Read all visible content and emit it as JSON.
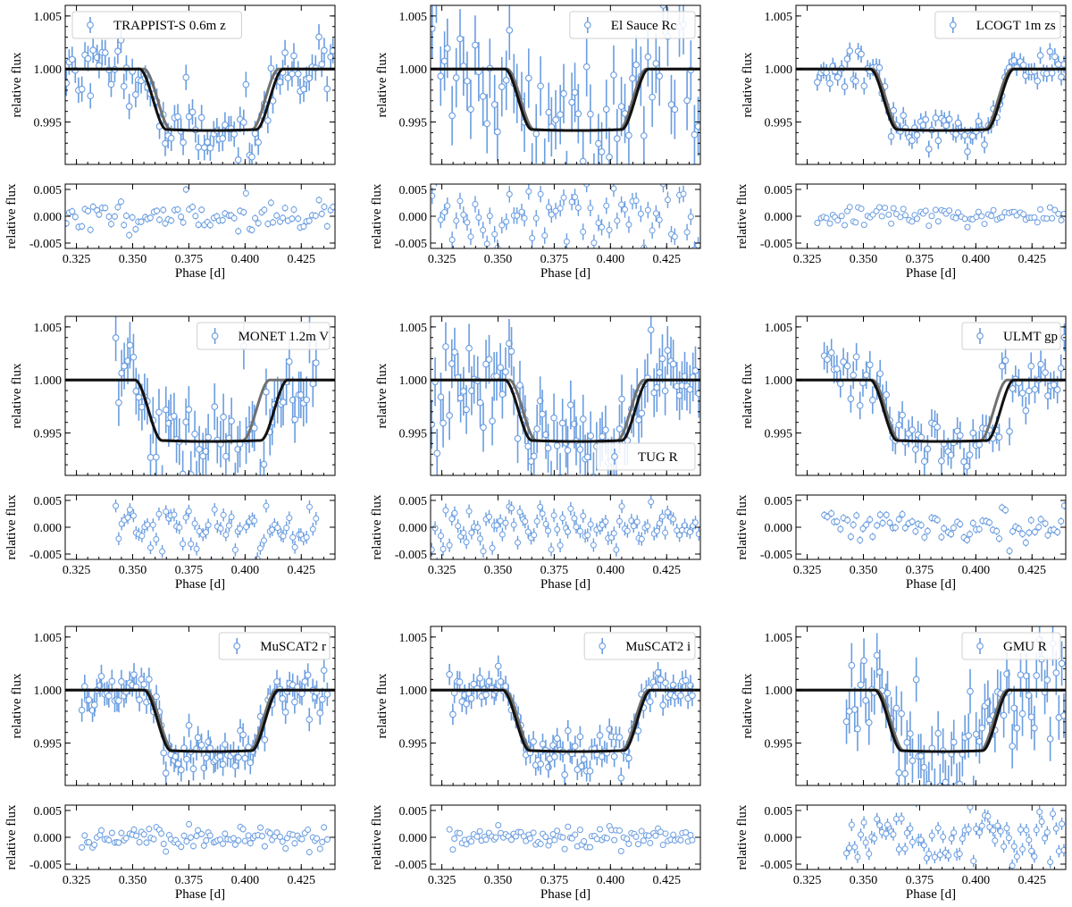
{
  "figure": {
    "description_axes": "3x3 grid of transit light curve panels with residual subplots",
    "colors": {
      "data": "#6a9de0",
      "model_primary": "#111111",
      "model_secondary": "#707070",
      "axis": "#000000"
    }
  },
  "chart_data": {
    "type": "scatter",
    "common": {
      "top_ylabel": "relative flux",
      "bottom_ylabel": "relative flux",
      "xlabel": "Phase [d]",
      "top_ylim": [
        0.991,
        1.006
      ],
      "top_yticks": [
        "1.005",
        "1.000",
        "0.995"
      ],
      "top_ytick_values": [
        1.005,
        1.0,
        0.995
      ],
      "bottom_ylim": [
        -0.006,
        0.006
      ],
      "bottom_yticks": [
        "0.005",
        "0.000",
        "-0.005"
      ],
      "bottom_ytick_values": [
        0.005,
        0.0,
        -0.005
      ],
      "xlim": [
        0.32,
        0.44
      ],
      "xticks": [
        "0.325",
        "0.350",
        "0.375",
        "0.400",
        "0.425"
      ],
      "xtick_values": [
        0.325,
        0.35,
        0.375,
        0.4,
        0.425
      ],
      "model": {
        "depth": 0.0058,
        "center": 0.385,
        "ingress_width": 0.012
      }
    },
    "panels": [
      {
        "name": "TRAPPIST-S 0.6m z",
        "legend_pos": "top-left",
        "data_range": [
          0.32,
          0.44
        ],
        "n_points": 90,
        "err": 0.0012,
        "scatter": 0.0014,
        "model_half_duration": 0.032,
        "alt_half_duration": 0.03,
        "alt_shift": 0.0,
        "seed": 11
      },
      {
        "name": "El Sauce Rc",
        "legend_pos": "top-right",
        "data_range": [
          0.32,
          0.44
        ],
        "n_points": 70,
        "err": 0.0028,
        "scatter": 0.0032,
        "model_half_duration": 0.032,
        "alt_half_duration": 0.031,
        "alt_shift": 0.0,
        "seed": 22
      },
      {
        "name": "LCOGT 1m zs",
        "legend_pos": "top-right",
        "data_range": [
          0.329,
          0.44
        ],
        "n_points": 85,
        "err": 0.0008,
        "scatter": 0.0009,
        "model_half_duration": 0.032,
        "alt_half_duration": 0.031,
        "alt_shift": 0.0,
        "seed": 33
      },
      {
        "name": "MONET 1.2m V",
        "legend_pos": "top-right",
        "data_range": [
          0.342,
          0.432
        ],
        "n_points": 70,
        "err": 0.0022,
        "scatter": 0.0026,
        "model_half_duration": 0.034,
        "alt_half_duration": 0.03,
        "alt_shift": -0.004,
        "seed": 44
      },
      {
        "name": "TUG R",
        "legend_pos": "bottom-right",
        "data_range": [
          0.32,
          0.44
        ],
        "n_points": 95,
        "err": 0.0023,
        "scatter": 0.0026,
        "model_half_duration": 0.032,
        "alt_half_duration": 0.03,
        "alt_shift": 0.0,
        "seed": 55
      },
      {
        "name": "ULMT gp",
        "legend_pos": "top-right",
        "data_range": [
          0.332,
          0.44
        ],
        "n_points": 75,
        "err": 0.0013,
        "scatter": 0.0014,
        "model_half_duration": 0.032,
        "alt_half_duration": 0.03,
        "alt_shift": -0.001,
        "seed": 66
      },
      {
        "name": "MuSCAT2 r",
        "legend_pos": "top-right",
        "data_range": [
          0.327,
          0.437
        ],
        "n_points": 100,
        "err": 0.0011,
        "scatter": 0.0012,
        "model_half_duration": 0.03,
        "alt_half_duration": 0.029,
        "alt_shift": 0.0,
        "seed": 77
      },
      {
        "name": "MuSCAT2 i",
        "legend_pos": "top-right",
        "data_range": [
          0.328,
          0.437
        ],
        "n_points": 100,
        "err": 0.001,
        "scatter": 0.001,
        "model_half_duration": 0.033,
        "alt_half_duration": 0.032,
        "alt_shift": 0.0,
        "seed": 88
      },
      {
        "name": "GMU R",
        "legend_pos": "top-right",
        "data_range": [
          0.342,
          0.44
        ],
        "n_points": 80,
        "err": 0.0021,
        "scatter": 0.0023,
        "model_half_duration": 0.03,
        "alt_half_duration": 0.029,
        "alt_shift": 0.0,
        "seed": 99
      }
    ]
  }
}
